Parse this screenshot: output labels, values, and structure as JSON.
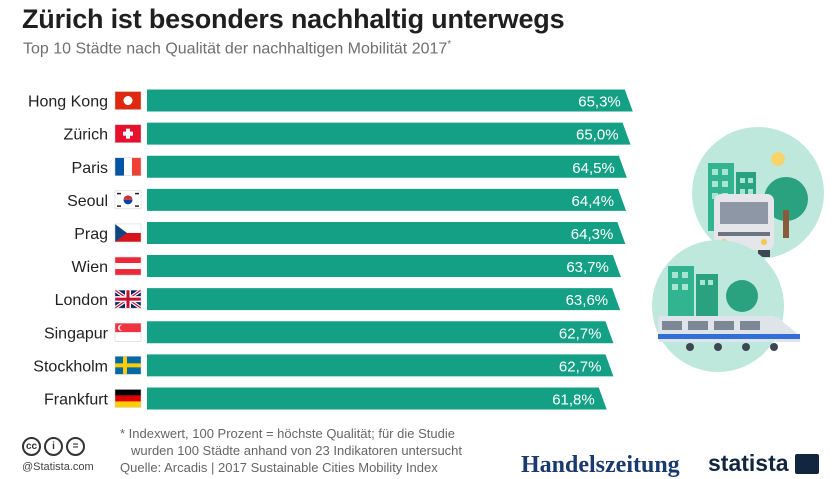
{
  "title": "Zürich ist besonders nachhaltig unterwegs",
  "subtitle": "Top 10 Städte nach Qualität der nachhaltigen Mobilität 2017",
  "subtitle_mark": "*",
  "chart_data": {
    "type": "bar",
    "orientation": "horizontal",
    "categories": [
      "Hong Kong",
      "Zürich",
      "Paris",
      "Seoul",
      "Prag",
      "Wien",
      "London",
      "Singapur",
      "Stockholm",
      "Frankfurt"
    ],
    "values": [
      65.3,
      65.0,
      64.5,
      64.4,
      64.3,
      63.7,
      63.6,
      62.7,
      62.7,
      61.8
    ],
    "value_labels": [
      "65,3%",
      "65,0%",
      "64,5%",
      "64,4%",
      "64,3%",
      "63,7%",
      "63,6%",
      "62,7%",
      "62,7%",
      "61,8%"
    ],
    "flags": [
      "hong-kong-flag",
      "switzerland-flag",
      "france-flag",
      "south-korea-flag",
      "czech-flag",
      "austria-flag",
      "uk-flag",
      "singapore-flag",
      "sweden-flag",
      "germany-flag"
    ],
    "bar_color": "#14a085",
    "xlim": [
      0,
      66
    ],
    "grid": false
  },
  "footnote_line1": "* Indexwert, 100 Prozent = höchste Qualität; für die Studie",
  "footnote_line2": "wurden 100 Städte anhand von 23 Indikatoren untersucht",
  "source": "Quelle: Arcadis | 2017 Sustainable Cities Mobility Index",
  "credit": "@Statista.com",
  "cc_icons": [
    "cc",
    "i",
    "="
  ],
  "logos": {
    "handelszeitung": "Handelszeitung",
    "statista": "statista"
  }
}
